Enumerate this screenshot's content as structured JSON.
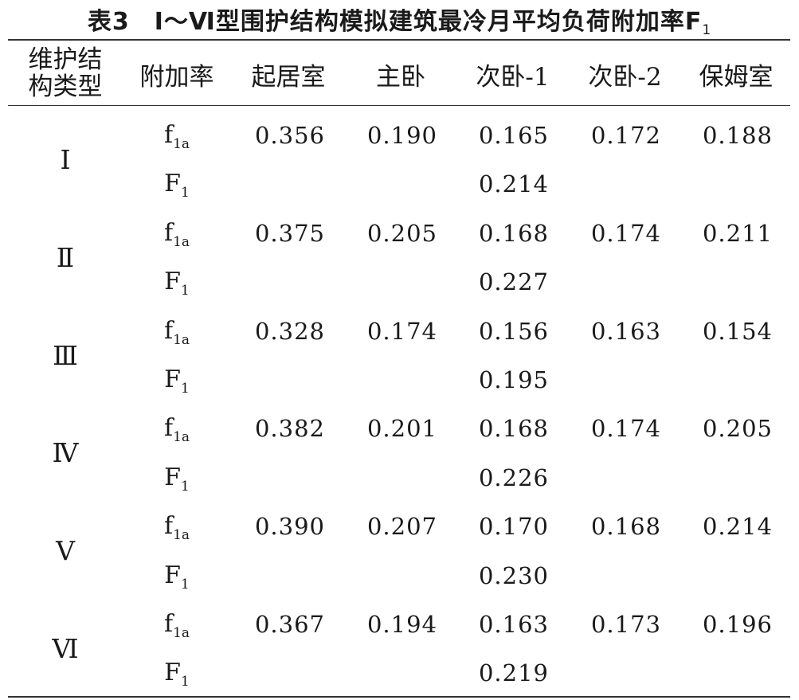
{
  "caption": {
    "text": "表3　Ⅰ～Ⅵ型围护结构模拟建筑最冷月平均负荷附加率F",
    "sub": "1"
  },
  "headers": [
    "维护结构类型",
    "附加率",
    "起居室",
    "主卧",
    "次卧-1",
    "次卧-2",
    "保姆室"
  ],
  "rate_labels": {
    "f_base": "f",
    "f_sub": "1a",
    "F_base": "F",
    "F_sub": "1"
  },
  "groups": [
    {
      "type": "Ⅰ",
      "f1a": [
        "0.356",
        "0.190",
        "0.165",
        "0.172",
        "0.188"
      ],
      "F1": "0.214"
    },
    {
      "type": "Ⅱ",
      "f1a": [
        "0.375",
        "0.205",
        "0.168",
        "0.174",
        "0.211"
      ],
      "F1": "0.227"
    },
    {
      "type": "Ⅲ",
      "f1a": [
        "0.328",
        "0.174",
        "0.156",
        "0.163",
        "0.154"
      ],
      "F1": "0.195"
    },
    {
      "type": "Ⅳ",
      "f1a": [
        "0.382",
        "0.201",
        "0.168",
        "0.174",
        "0.205"
      ],
      "F1": "0.226"
    },
    {
      "type": "Ⅴ",
      "f1a": [
        "0.390",
        "0.207",
        "0.170",
        "0.168",
        "0.214"
      ],
      "F1": "0.230"
    },
    {
      "type": "Ⅵ",
      "f1a": [
        "0.367",
        "0.194",
        "0.163",
        "0.173",
        "0.196"
      ],
      "F1": "0.219"
    }
  ]
}
